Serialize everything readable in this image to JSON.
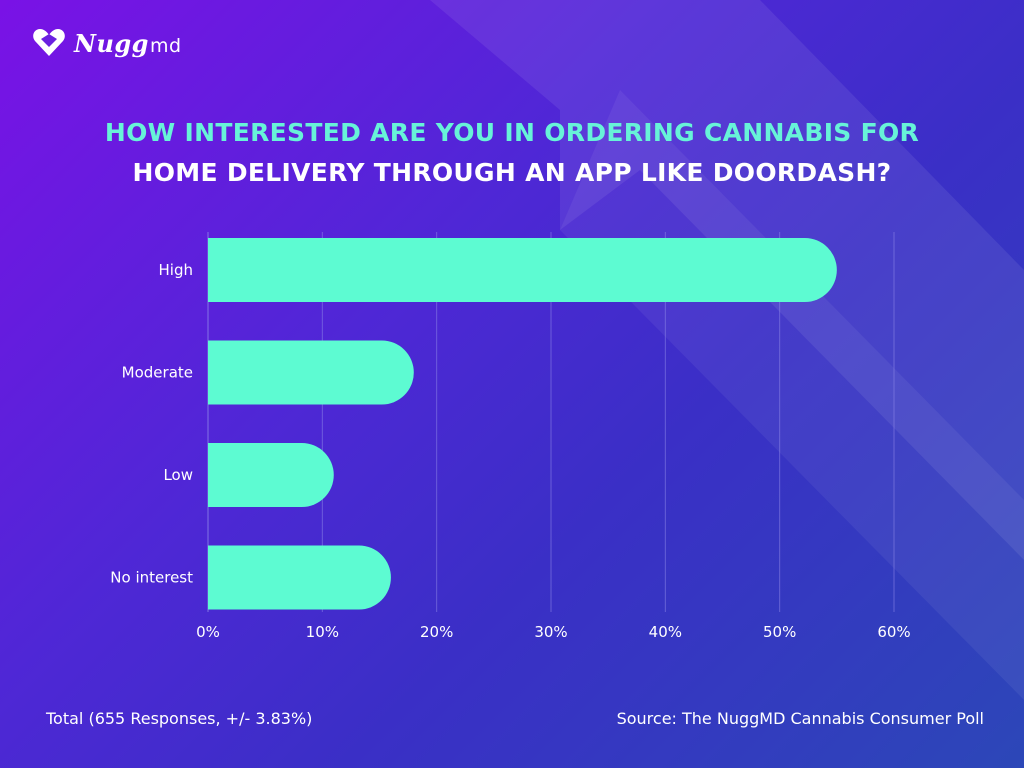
{
  "brand": {
    "name": "Nugg",
    "name_suffix": "md"
  },
  "title": {
    "line1": "HOW INTERESTED ARE YOU IN ORDERING CANNABIS FOR",
    "line2": "HOME DELIVERY THROUGH AN APP LIKE DOORDASH?"
  },
  "chart_data": {
    "type": "bar",
    "orientation": "horizontal",
    "categories": [
      "High",
      "Moderate",
      "Low",
      "No interest"
    ],
    "values": [
      55,
      18,
      11,
      16
    ],
    "value_unit": "%",
    "xlim": [
      0,
      60
    ],
    "x_ticks": [
      0,
      10,
      20,
      30,
      40,
      50,
      60
    ],
    "x_tick_labels": [
      "0%",
      "10%",
      "20%",
      "30%",
      "40%",
      "50%",
      "60%"
    ],
    "grid": true,
    "bar_color": "#5dfbd2",
    "grid_color": "#8e86e8"
  },
  "footer": {
    "total": "Total (655 Responses, +/- 3.83%)",
    "source": "Source: The NuggMD Cannabis Consumer Poll"
  }
}
